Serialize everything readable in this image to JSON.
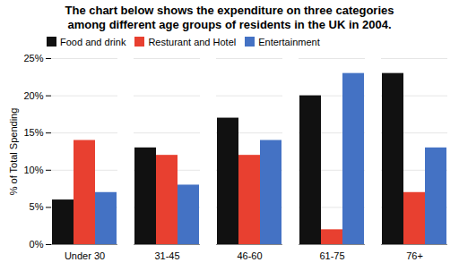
{
  "chart_data": {
    "type": "bar",
    "title": "The chart below shows the expenditure on three categories\namong different age groups of residents in the UK in 2004.",
    "categories": [
      "Under 30",
      "31-45",
      "46-60",
      "61-75",
      "76+"
    ],
    "series": [
      {
        "name": "Food and drink",
        "color": "#111111",
        "values": [
          6,
          13,
          17,
          20,
          23
        ]
      },
      {
        "name": "Resturant and Hotel",
        "color": "#e84030",
        "values": [
          14,
          12,
          12,
          2,
          7
        ]
      },
      {
        "name": "Entertainment",
        "color": "#4472c4",
        "values": [
          7,
          8,
          14,
          23,
          13
        ]
      }
    ],
    "ylabel": "% of Total Spending",
    "ylim": [
      0,
      25
    ],
    "yticks": [
      {
        "value": 0,
        "label": "0%"
      },
      {
        "value": 5,
        "label": "5%"
      },
      {
        "value": 10,
        "label": "10%"
      },
      {
        "value": 15,
        "label": "15%"
      },
      {
        "value": 20,
        "label": "20%"
      },
      {
        "value": 25,
        "label": "25%"
      }
    ],
    "grid": true,
    "legend": "upper left"
  }
}
